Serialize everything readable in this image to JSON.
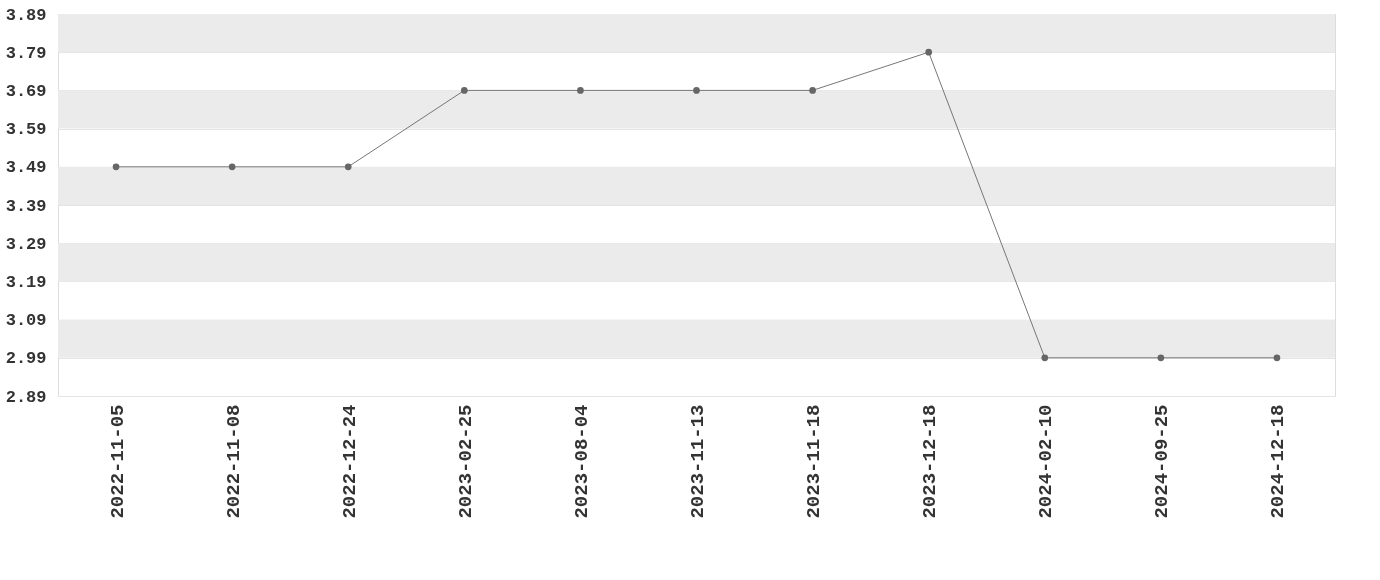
{
  "chart_data": {
    "type": "line",
    "categories": [
      "2022-11-05",
      "2022-11-08",
      "2022-12-24",
      "2023-02-25",
      "2023-08-04",
      "2023-11-13",
      "2023-11-18",
      "2023-12-18",
      "2024-02-10",
      "2024-09-25",
      "2024-12-18"
    ],
    "series": [
      {
        "color": "#777777",
        "values": [
          3.49,
          3.49,
          3.49,
          3.69,
          3.69,
          3.69,
          3.69,
          3.79,
          2.99,
          2.99,
          2.99
        ]
      }
    ],
    "ylim": [
      2.89,
      3.89
    ],
    "yticks": [
      2.89,
      2.99,
      3.09,
      3.19,
      3.29,
      3.39,
      3.49,
      3.59,
      3.69,
      3.79,
      3.89
    ],
    "grid": "y",
    "marker": "circle",
    "line_style": "solid"
  }
}
